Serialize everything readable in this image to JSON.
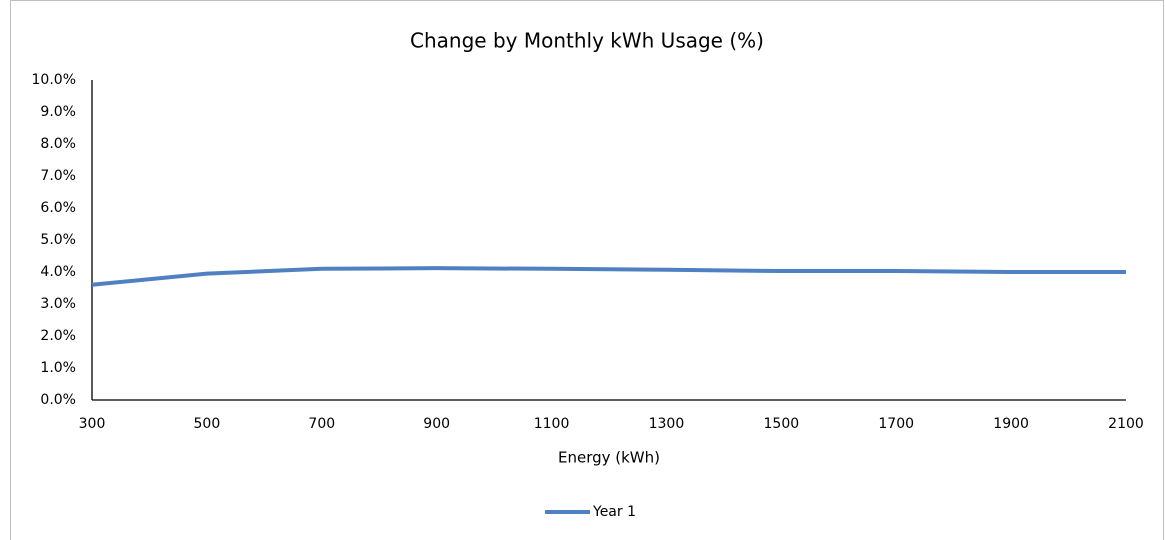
{
  "chart_data": {
    "type": "line",
    "title": "Change by Monthly kWh Usage (%)",
    "x_label": "Energy (kWh)",
    "x": [
      300,
      500,
      700,
      900,
      1100,
      1300,
      1500,
      1700,
      1900,
      2100
    ],
    "series": [
      {
        "name": "Year 1",
        "color": "#4f81c2",
        "values": [
          3.6,
          3.95,
          4.1,
          4.12,
          4.1,
          4.07,
          4.03,
          4.03,
          4.0,
          4.0
        ]
      }
    ],
    "xlim": [
      300,
      2100
    ],
    "xticks": [
      300,
      500,
      700,
      900,
      1100,
      1300,
      1500,
      1700,
      1900,
      2100
    ],
    "ylim": [
      0,
      10
    ],
    "yticks": [
      {
        "value": 0,
        "label": "0.0%"
      },
      {
        "value": 1,
        "label": "1.0%"
      },
      {
        "value": 2,
        "label": "2.0%"
      },
      {
        "value": 3,
        "label": "3.0%"
      },
      {
        "value": 4,
        "label": "4.0%"
      },
      {
        "value": 5,
        "label": "5.0%"
      },
      {
        "value": 6,
        "label": "6.0%"
      },
      {
        "value": 7,
        "label": "7.0%"
      },
      {
        "value": 8,
        "label": "8.0%"
      },
      {
        "value": 9,
        "label": "9.0%"
      },
      {
        "value": 10,
        "label": "10.0%"
      }
    ],
    "grid": false,
    "legend": "bottom"
  }
}
